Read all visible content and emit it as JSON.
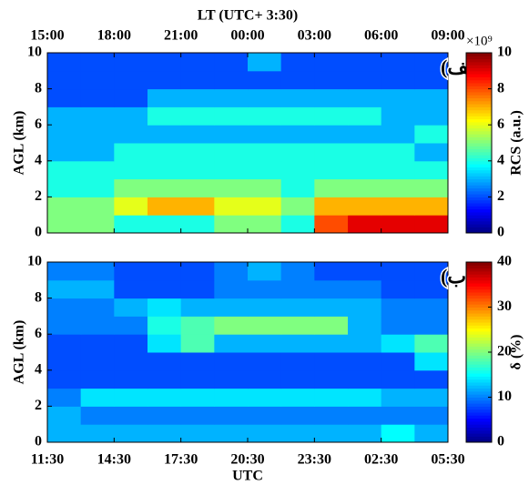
{
  "chart_data": [
    {
      "type": "heatmap",
      "top_axis_label": "LT (UTC+ 3:30)",
      "ylabel": "AGL (km)",
      "panel_label": "(الف)",
      "colorbar_label": "RCS (a.u.)",
      "colorbar_exponent": "×10⁹",
      "colormap": "jet",
      "xlim": [
        0,
        18
      ],
      "ylim": [
        0,
        10
      ],
      "zlim": [
        0,
        10
      ],
      "xticks": [
        {
          "value": 0,
          "label": "15:00"
        },
        {
          "value": 3,
          "label": "18:00"
        },
        {
          "value": 6,
          "label": "21:00"
        },
        {
          "value": 9,
          "label": "00:00"
        },
        {
          "value": 12,
          "label": "03:00"
        },
        {
          "value": 15,
          "label": "06:00"
        },
        {
          "value": 18,
          "label": "09:00"
        }
      ],
      "yticks": [
        0,
        2,
        4,
        6,
        8,
        10
      ],
      "zticks": [
        0,
        2,
        4,
        6,
        8,
        10
      ],
      "x_edges": [
        0,
        1.5,
        3,
        4.5,
        6,
        7.5,
        9,
        10.5,
        12,
        13.5,
        15,
        16.5,
        18
      ],
      "y_edges": [
        0,
        1,
        2,
        3,
        4,
        5,
        6,
        7,
        8,
        9,
        10
      ],
      "z": [
        [
          5,
          5,
          4,
          4,
          4,
          5,
          5,
          4,
          8,
          9,
          9,
          9
        ],
        [
          5,
          5,
          6,
          7,
          7,
          6,
          6,
          5,
          7,
          7,
          7,
          7
        ],
        [
          4,
          4,
          5,
          5,
          5,
          5,
          5,
          4,
          5,
          5,
          5,
          5
        ],
        [
          4,
          4,
          4,
          4,
          4,
          4,
          4,
          4,
          4,
          4,
          4,
          4
        ],
        [
          3,
          3,
          4,
          4,
          4,
          4,
          4,
          4,
          4,
          4,
          4,
          3
        ],
        [
          3,
          3,
          3,
          3,
          3,
          3,
          3,
          3,
          3,
          3,
          3,
          4
        ],
        [
          3,
          3,
          3,
          4,
          4,
          4,
          4,
          4,
          4,
          4,
          3,
          3
        ],
        [
          2,
          2,
          2,
          3,
          3,
          3,
          3,
          3,
          3,
          3,
          3,
          3
        ],
        [
          2,
          2,
          2,
          2,
          2,
          2,
          2,
          2,
          2,
          2,
          2,
          2
        ],
        [
          2,
          2,
          2,
          2,
          2,
          2,
          3,
          2,
          2,
          2,
          2,
          2
        ]
      ]
    },
    {
      "type": "heatmap",
      "xlabel": "UTC",
      "ylabel": "AGL (km)",
      "panel_label": "(ب)",
      "colorbar_label": "δ (%)",
      "colormap": "jet",
      "xlim": [
        0,
        18
      ],
      "ylim": [
        0,
        10
      ],
      "zlim": [
        0,
        40
      ],
      "xticks": [
        {
          "value": 0,
          "label": "11:30"
        },
        {
          "value": 3,
          "label": "14:30"
        },
        {
          "value": 6,
          "label": "17:30"
        },
        {
          "value": 9,
          "label": "20:30"
        },
        {
          "value": 12,
          "label": "23:30"
        },
        {
          "value": 15,
          "label": "02:30"
        },
        {
          "value": 18,
          "label": "05:30"
        }
      ],
      "yticks": [
        0,
        2,
        4,
        6,
        8,
        10
      ],
      "zticks": [
        0,
        10,
        20,
        30,
        40
      ],
      "x_edges": [
        0,
        1.5,
        3,
        4.5,
        6,
        7.5,
        9,
        10.5,
        12,
        13.5,
        15,
        16.5,
        18
      ],
      "y_edges": [
        0,
        1,
        2,
        3,
        4,
        5,
        6,
        7,
        8,
        9,
        10
      ],
      "z": [
        [
          12,
          12,
          12,
          12,
          12,
          12,
          12,
          12,
          12,
          12,
          15,
          12
        ],
        [
          12,
          10,
          10,
          10,
          10,
          10,
          10,
          10,
          10,
          10,
          10,
          10
        ],
        [
          10,
          14,
          14,
          14,
          14,
          14,
          14,
          14,
          14,
          14,
          12,
          12
        ],
        [
          8,
          8,
          8,
          8,
          8,
          8,
          8,
          8,
          8,
          8,
          8,
          8
        ],
        [
          8,
          8,
          8,
          8,
          8,
          8,
          8,
          8,
          8,
          8,
          8,
          14
        ],
        [
          8,
          8,
          8,
          14,
          18,
          12,
          12,
          12,
          12,
          12,
          14,
          18
        ],
        [
          10,
          10,
          10,
          16,
          18,
          20,
          20,
          20,
          20,
          12,
          10,
          10
        ],
        [
          10,
          10,
          12,
          14,
          12,
          12,
          12,
          12,
          12,
          12,
          10,
          10
        ],
        [
          12,
          12,
          8,
          8,
          8,
          10,
          10,
          10,
          10,
          10,
          8,
          8
        ],
        [
          10,
          10,
          8,
          8,
          8,
          10,
          12,
          10,
          8,
          8,
          8,
          8
        ]
      ]
    }
  ]
}
